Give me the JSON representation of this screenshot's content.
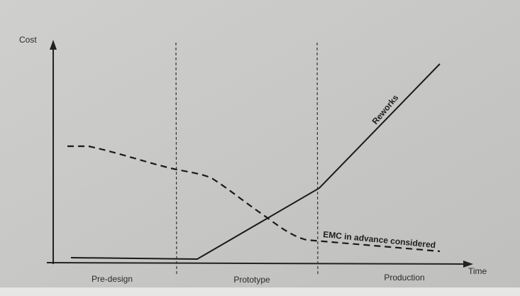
{
  "axes": {
    "y_label": "Cost",
    "x_label": "Time"
  },
  "phases": [
    "Pre-design",
    "Prototype",
    "Production"
  ],
  "curves": [
    {
      "label": "Reworks"
    },
    {
      "label": "EMC in advance considered"
    }
  ]
}
